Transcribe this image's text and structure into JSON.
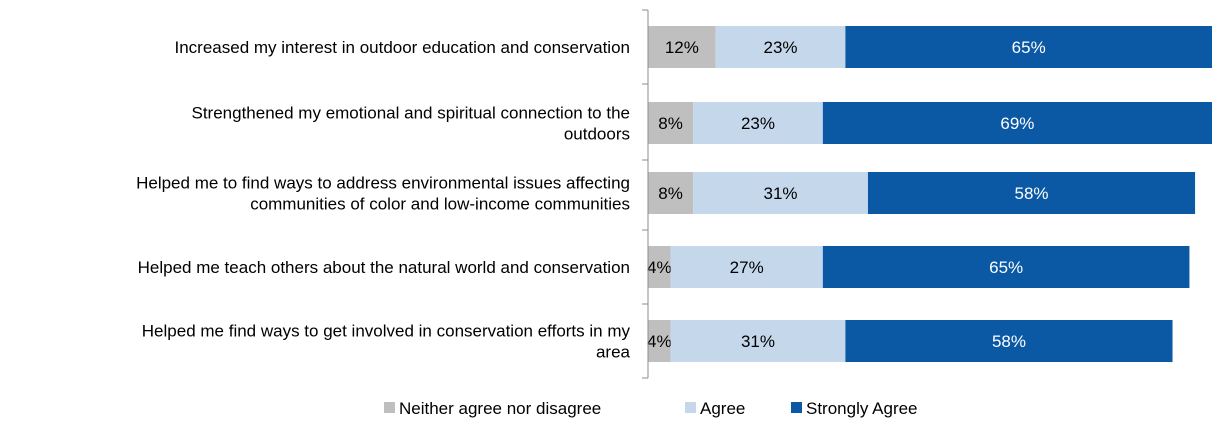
{
  "chart_data": {
    "type": "bar",
    "orientation": "horizontal",
    "stacked": true,
    "categories": [
      "Increased my interest in outdoor education and conservation",
      "Strengthened my emotional and spiritual connection to the outdoors",
      "Helped me to find ways to address environmental issues affecting communities of color and low-income communities",
      "Helped me teach others about the natural world and conservation",
      "Helped me find ways to get involved in conservation efforts in my area"
    ],
    "category_lines": [
      [
        "Increased my interest in outdoor education and conservation"
      ],
      [
        "Strengthened my emotional and spiritual connection to the",
        "outdoors"
      ],
      [
        "Helped me to find ways to address environmental issues affecting",
        "communities of color and low-income communities"
      ],
      [
        "Helped me teach others about the natural world and conservation"
      ],
      [
        "Helped me find ways to get involved in conservation efforts in my",
        "area"
      ]
    ],
    "series": [
      {
        "name": "Neither agree nor disagree",
        "color": "#bfbfbf",
        "label_color": "#000000",
        "values": [
          12,
          8,
          8,
          4,
          4
        ],
        "labels": [
          "12%",
          "8%",
          "8%",
          "4%",
          "4%"
        ]
      },
      {
        "name": "Agree",
        "color": "#c5d7ea",
        "label_color": "#000000",
        "values": [
          23,
          23,
          31,
          27,
          31
        ],
        "labels": [
          "23%",
          "23%",
          "31%",
          "27%",
          "31%"
        ]
      },
      {
        "name": "Strongly Agree",
        "color": "#0b58a4",
        "label_color": "#ffffff",
        "values": [
          65,
          69,
          58,
          65,
          58
        ],
        "labels": [
          "65%",
          "69%",
          "58%",
          "65%",
          "58%"
        ]
      }
    ],
    "xlim": [
      0,
      100
    ],
    "grid": false,
    "legend_position": "bottom"
  }
}
